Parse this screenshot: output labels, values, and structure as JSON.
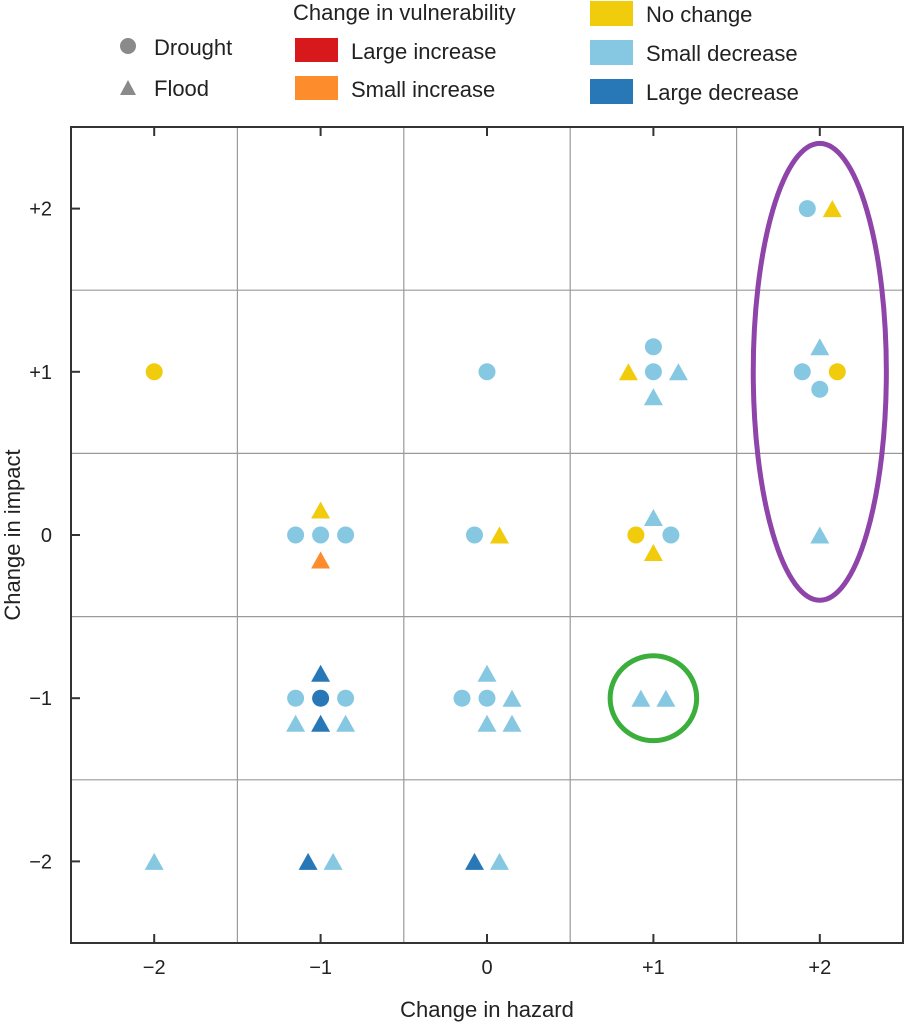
{
  "chart_data": {
    "type": "scatter",
    "title": "",
    "xlabel": "Change in hazard",
    "ylabel": "Change in impact",
    "xlim": [
      -2.5,
      2.5
    ],
    "ylim": [
      -2.5,
      2.5
    ],
    "x_ticks": [
      -2,
      -1,
      0,
      1,
      2
    ],
    "y_ticks": [
      -2,
      -1,
      0,
      1,
      2
    ],
    "x_tick_labels": [
      "−2",
      "−1",
      "0",
      "+1",
      "+2"
    ],
    "y_tick_labels": [
      "−2",
      "−1",
      "0",
      "+1",
      "+2"
    ],
    "grid": true,
    "grid_lines_at": [
      -1.5,
      -0.5,
      0.5,
      1.5
    ],
    "legend": {
      "shape_legend": {
        "placement": "top-left",
        "items": [
          {
            "shape": "circle",
            "label": "Drought"
          },
          {
            "shape": "triangle",
            "label": "Flood"
          }
        ]
      },
      "color_legend": {
        "placement": "top",
        "title": "Change in vulnerability",
        "items": [
          {
            "key": "large_increase",
            "label": "Large increase",
            "color": "#d7191c"
          },
          {
            "key": "small_increase",
            "label": "Small increase",
            "color": "#fd8d2c"
          },
          {
            "key": "no_change",
            "label": "No change",
            "color": "#f0cc0c"
          },
          {
            "key": "small_decrease",
            "label": "Small decrease",
            "color": "#86c8e1"
          },
          {
            "key": "large_decrease",
            "label": "Large decrease",
            "color": "#2878b8"
          }
        ]
      }
    },
    "points": [
      {
        "hazard": -2,
        "impact": 1,
        "type": "drought",
        "vulnerability": "no_change",
        "dx": 0,
        "dy": 0
      },
      {
        "hazard": 0,
        "impact": 1,
        "type": "drought",
        "vulnerability": "small_decrease",
        "dx": 0,
        "dy": 0
      },
      {
        "hazard": 1,
        "impact": 1,
        "type": "drought",
        "vulnerability": "small_decrease",
        "dx": 0,
        "dy": 1
      },
      {
        "hazard": 1,
        "impact": 1,
        "type": "flood",
        "vulnerability": "no_change",
        "dx": -1,
        "dy": 0
      },
      {
        "hazard": 1,
        "impact": 1,
        "type": "drought",
        "vulnerability": "small_decrease",
        "dx": 0,
        "dy": 0
      },
      {
        "hazard": 1,
        "impact": 1,
        "type": "flood",
        "vulnerability": "small_decrease",
        "dx": 1,
        "dy": 0
      },
      {
        "hazard": 1,
        "impact": 1,
        "type": "flood",
        "vulnerability": "small_decrease",
        "dx": 0,
        "dy": -1
      },
      {
        "hazard": 2,
        "impact": 2,
        "type": "drought",
        "vulnerability": "small_decrease",
        "dx": -0.5,
        "dy": 0
      },
      {
        "hazard": 2,
        "impact": 2,
        "type": "flood",
        "vulnerability": "no_change",
        "dx": 0.5,
        "dy": 0
      },
      {
        "hazard": 2,
        "impact": 1,
        "type": "flood",
        "vulnerability": "small_decrease",
        "dx": 0,
        "dy": 1
      },
      {
        "hazard": 2,
        "impact": 1,
        "type": "drought",
        "vulnerability": "small_decrease",
        "dx": -0.7,
        "dy": 0
      },
      {
        "hazard": 2,
        "impact": 1,
        "type": "drought",
        "vulnerability": "no_change",
        "dx": 0.7,
        "dy": 0
      },
      {
        "hazard": 2,
        "impact": 1,
        "type": "drought",
        "vulnerability": "small_decrease",
        "dx": 0,
        "dy": -0.7
      },
      {
        "hazard": 2,
        "impact": 0,
        "type": "flood",
        "vulnerability": "small_decrease",
        "dx": 0,
        "dy": 0
      },
      {
        "hazard": -1,
        "impact": 0,
        "type": "flood",
        "vulnerability": "no_change",
        "dx": 0,
        "dy": 1
      },
      {
        "hazard": -1,
        "impact": 0,
        "type": "drought",
        "vulnerability": "small_decrease",
        "dx": -1,
        "dy": 0
      },
      {
        "hazard": -1,
        "impact": 0,
        "type": "drought",
        "vulnerability": "small_decrease",
        "dx": 0,
        "dy": 0
      },
      {
        "hazard": -1,
        "impact": 0,
        "type": "drought",
        "vulnerability": "small_decrease",
        "dx": 1,
        "dy": 0
      },
      {
        "hazard": -1,
        "impact": 0,
        "type": "flood",
        "vulnerability": "small_increase",
        "dx": 0,
        "dy": -1
      },
      {
        "hazard": 0,
        "impact": 0,
        "type": "drought",
        "vulnerability": "small_decrease",
        "dx": -0.5,
        "dy": 0
      },
      {
        "hazard": 0,
        "impact": 0,
        "type": "flood",
        "vulnerability": "no_change",
        "dx": 0.5,
        "dy": 0
      },
      {
        "hazard": 1,
        "impact": 0,
        "type": "flood",
        "vulnerability": "small_decrease",
        "dx": 0,
        "dy": 0.7
      },
      {
        "hazard": 1,
        "impact": 0,
        "type": "drought",
        "vulnerability": "no_change",
        "dx": -0.7,
        "dy": 0
      },
      {
        "hazard": 1,
        "impact": 0,
        "type": "drought",
        "vulnerability": "small_decrease",
        "dx": 0.7,
        "dy": 0
      },
      {
        "hazard": 1,
        "impact": 0,
        "type": "flood",
        "vulnerability": "no_change",
        "dx": 0,
        "dy": -0.7
      },
      {
        "hazard": -1,
        "impact": -1,
        "type": "flood",
        "vulnerability": "large_decrease",
        "dx": 0,
        "dy": 1
      },
      {
        "hazard": -1,
        "impact": -1,
        "type": "drought",
        "vulnerability": "small_decrease",
        "dx": -1,
        "dy": 0
      },
      {
        "hazard": -1,
        "impact": -1,
        "type": "drought",
        "vulnerability": "large_decrease",
        "dx": 0,
        "dy": 0
      },
      {
        "hazard": -1,
        "impact": -1,
        "type": "drought",
        "vulnerability": "small_decrease",
        "dx": 1,
        "dy": 0
      },
      {
        "hazard": -1,
        "impact": -1,
        "type": "flood",
        "vulnerability": "small_decrease",
        "dx": -1,
        "dy": -1
      },
      {
        "hazard": -1,
        "impact": -1,
        "type": "flood",
        "vulnerability": "large_decrease",
        "dx": 0,
        "dy": -1
      },
      {
        "hazard": -1,
        "impact": -1,
        "type": "flood",
        "vulnerability": "small_decrease",
        "dx": 1,
        "dy": -1
      },
      {
        "hazard": 0,
        "impact": -1,
        "type": "flood",
        "vulnerability": "small_decrease",
        "dx": 0,
        "dy": 1
      },
      {
        "hazard": 0,
        "impact": -1,
        "type": "drought",
        "vulnerability": "small_decrease",
        "dx": -1,
        "dy": 0
      },
      {
        "hazard": 0,
        "impact": -1,
        "type": "drought",
        "vulnerability": "small_decrease",
        "dx": 0,
        "dy": 0
      },
      {
        "hazard": 0,
        "impact": -1,
        "type": "flood",
        "vulnerability": "small_decrease",
        "dx": 1,
        "dy": 0
      },
      {
        "hazard": 0,
        "impact": -1,
        "type": "flood",
        "vulnerability": "small_decrease",
        "dx": 0,
        "dy": -1
      },
      {
        "hazard": 0,
        "impact": -1,
        "type": "flood",
        "vulnerability": "small_decrease",
        "dx": 1,
        "dy": -1
      },
      {
        "hazard": 1,
        "impact": -1,
        "type": "flood",
        "vulnerability": "small_decrease",
        "dx": -0.5,
        "dy": 0
      },
      {
        "hazard": 1,
        "impact": -1,
        "type": "flood",
        "vulnerability": "small_decrease",
        "dx": 0.5,
        "dy": 0
      },
      {
        "hazard": -2,
        "impact": -2,
        "type": "flood",
        "vulnerability": "small_decrease",
        "dx": 0,
        "dy": 0
      },
      {
        "hazard": -1,
        "impact": -2,
        "type": "flood",
        "vulnerability": "large_decrease",
        "dx": -0.5,
        "dy": 0
      },
      {
        "hazard": -1,
        "impact": -2,
        "type": "flood",
        "vulnerability": "small_decrease",
        "dx": 0.5,
        "dy": 0
      },
      {
        "hazard": 0,
        "impact": -2,
        "type": "flood",
        "vulnerability": "large_decrease",
        "dx": -0.5,
        "dy": 0
      },
      {
        "hazard": 0,
        "impact": -2,
        "type": "flood",
        "vulnerability": "small_decrease",
        "dx": 0.5,
        "dy": 0
      }
    ],
    "annotations": [
      {
        "type": "ellipse",
        "color": "#8e44a8",
        "center": [
          2,
          1
        ],
        "x_radius": 0.4,
        "y_radius": 1.4,
        "label": ""
      },
      {
        "type": "circle",
        "color": "#3cae3c",
        "center": [
          1,
          -1
        ],
        "x_radius": 0.26,
        "y_radius": 0.26,
        "label": ""
      }
    ]
  }
}
